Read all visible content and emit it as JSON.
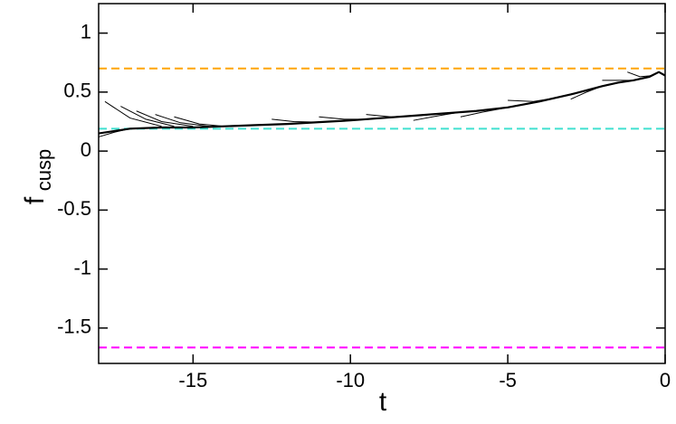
{
  "chart_data": {
    "type": "line",
    "xlabel": "t",
    "ylabel": "f",
    "ylabel_sub": "cusp",
    "xlim": [
      -18,
      0
    ],
    "ylim": [
      -1.8,
      1.25
    ],
    "xticks": [
      -15,
      -10,
      -5,
      0
    ],
    "yticks": [
      -1.5,
      -1,
      -0.5,
      0,
      0.5,
      1
    ],
    "hlines": [
      {
        "value": 0.7,
        "color": "#ffa500"
      },
      {
        "value": 0.19,
        "color": "#40e0d0"
      },
      {
        "value": -1.665,
        "color": "#ff00ff"
      }
    ],
    "series": [
      {
        "color": "#000000",
        "width": 2.2,
        "x": [
          -18,
          -17,
          -16,
          -15,
          -14,
          -13,
          -12,
          -11,
          -10,
          -9,
          -8,
          -7,
          -6,
          -5,
          -4,
          -3,
          -2,
          -1.5,
          -1,
          -0.5,
          -0.2,
          0
        ],
        "values": [
          0.15,
          0.19,
          0.2,
          0.2,
          0.21,
          0.22,
          0.23,
          0.245,
          0.26,
          0.28,
          0.3,
          0.32,
          0.34,
          0.37,
          0.42,
          0.48,
          0.55,
          0.58,
          0.6,
          0.63,
          0.67,
          0.64
        ]
      },
      {
        "color": "#000000",
        "width": 1,
        "x": [
          -17.8,
          -17,
          -16
        ],
        "values": [
          0.42,
          0.28,
          0.21
        ]
      },
      {
        "color": "#000000",
        "width": 1,
        "x": [
          -17.3,
          -16.5,
          -15.6
        ],
        "values": [
          0.38,
          0.27,
          0.21
        ]
      },
      {
        "color": "#000000",
        "width": 1,
        "x": [
          -16.8,
          -16,
          -15
        ],
        "values": [
          0.34,
          0.25,
          0.21
        ]
      },
      {
        "color": "#000000",
        "width": 1,
        "x": [
          -16.2,
          -15.4,
          -14.5
        ],
        "values": [
          0.31,
          0.24,
          0.21
        ]
      },
      {
        "color": "#000000",
        "width": 1,
        "x": [
          -15.6,
          -14.8,
          -14
        ],
        "values": [
          0.29,
          0.23,
          0.21
        ]
      },
      {
        "color": "#000000",
        "width": 1,
        "x": [
          -18,
          -17.5,
          -17
        ],
        "values": [
          0.12,
          0.16,
          0.19
        ]
      },
      {
        "color": "#000000",
        "width": 1,
        "x": [
          -12.5,
          -11.8,
          -11
        ],
        "values": [
          0.27,
          0.25,
          0.245
        ]
      },
      {
        "color": "#000000",
        "width": 1,
        "x": [
          -11,
          -10.2,
          -9.4
        ],
        "values": [
          0.29,
          0.27,
          0.27
        ]
      },
      {
        "color": "#000000",
        "width": 1,
        "x": [
          -9.5,
          -8.7,
          -8
        ],
        "values": [
          0.31,
          0.29,
          0.3
        ]
      },
      {
        "color": "#000000",
        "width": 1,
        "x": [
          -8,
          -7.2,
          -6.5
        ],
        "values": [
          0.26,
          0.3,
          0.33
        ]
      },
      {
        "color": "#000000",
        "width": 1,
        "x": [
          -6.5,
          -5.8,
          -5
        ],
        "values": [
          0.29,
          0.33,
          0.37
        ]
      },
      {
        "color": "#000000",
        "width": 1,
        "x": [
          -5,
          -4.2,
          -3.5
        ],
        "values": [
          0.43,
          0.42,
          0.45
        ]
      },
      {
        "color": "#000000",
        "width": 1,
        "x": [
          -3,
          -2.5,
          -2
        ],
        "values": [
          0.44,
          0.5,
          0.55
        ]
      },
      {
        "color": "#000000",
        "width": 1,
        "x": [
          -2,
          -1.5,
          -1
        ],
        "values": [
          0.6,
          0.6,
          0.6
        ]
      },
      {
        "color": "#000000",
        "width": 1,
        "x": [
          -1.2,
          -0.8,
          -0.4
        ],
        "values": [
          0.67,
          0.63,
          0.64
        ]
      }
    ]
  }
}
